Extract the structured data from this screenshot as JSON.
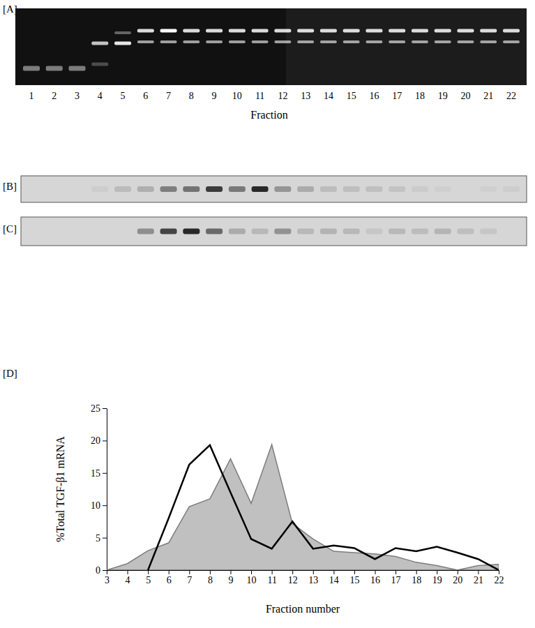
{
  "panels": [
    "[A]",
    "[B]",
    "[C]",
    "[D]"
  ],
  "gel": {
    "lanes": [
      1,
      2,
      3,
      4,
      5,
      6,
      7,
      8,
      9,
      10,
      11,
      12,
      13,
      14,
      15,
      16,
      17,
      18,
      19,
      20,
      21,
      22
    ],
    "xlabel": "Fraction"
  },
  "chart_data": {
    "type": "line",
    "xlabel": "Fraction number",
    "ylabel": "%Total TGF-β1 mRNA",
    "x": [
      3,
      4,
      5,
      6,
      7,
      8,
      9,
      10,
      11,
      12,
      13,
      14,
      15,
      16,
      17,
      18,
      19,
      20,
      21,
      22
    ],
    "series": [
      {
        "type": "line",
        "color": "#000000",
        "values": [
          null,
          null,
          0,
          8,
          16.3,
          19.3,
          12,
          4.8,
          3.3,
          7.5,
          3.3,
          3.8,
          3.4,
          1.7,
          3.4,
          2.9,
          3.6,
          2.7,
          1.7,
          0
        ]
      },
      {
        "type": "area",
        "color": "#c0c0c0",
        "values": [
          0,
          1,
          3,
          4.2,
          9.8,
          11,
          17.2,
          10.3,
          19.4,
          7.2,
          4.8,
          2.9,
          2.7,
          2.5,
          2.1,
          1.2,
          0.7,
          0,
          0.7,
          0.9
        ]
      }
    ],
    "xlim": [
      3,
      22
    ],
    "ylim": [
      0,
      25
    ],
    "xticks": [
      3,
      4,
      5,
      6,
      7,
      8,
      9,
      10,
      11,
      12,
      13,
      14,
      15,
      16,
      17,
      18,
      19,
      20,
      21,
      22
    ],
    "yticks": [
      0,
      5,
      10,
      15,
      20,
      25
    ]
  }
}
